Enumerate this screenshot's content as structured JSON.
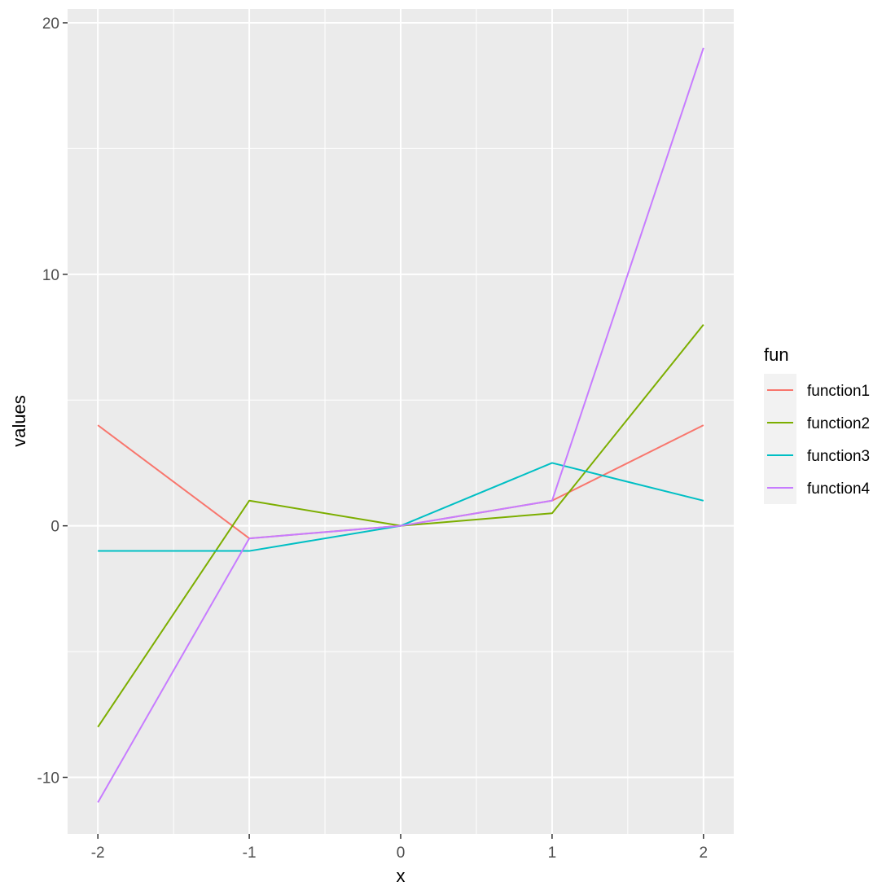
{
  "chart_data": {
    "type": "line",
    "xlabel": "x",
    "ylabel": "values",
    "xlim": [
      -2.2,
      2.2
    ],
    "ylim": [
      -12.25,
      20.55
    ],
    "x_ticks": [
      -2,
      -1,
      0,
      1,
      2
    ],
    "x_minor_ticks": [
      -1.5,
      -0.5,
      0.5,
      1.5
    ],
    "y_ticks": [
      -10,
      0,
      10,
      20
    ],
    "y_minor_ticks": [
      -5,
      5,
      15
    ],
    "x_tick_labels": [
      "-2",
      "-1",
      "0",
      "1",
      "2"
    ],
    "y_tick_labels": [
      "-10",
      "0",
      "10",
      "20"
    ],
    "grid": true,
    "legend": {
      "title": "fun",
      "position": "right"
    },
    "x": [
      -2,
      -1,
      0,
      1,
      2
    ],
    "series": [
      {
        "name": "function1",
        "color": "#F8766D",
        "values": [
          4,
          -0.5,
          0,
          1,
          4
        ]
      },
      {
        "name": "function2",
        "color": "#7CAE00",
        "values": [
          -8,
          1,
          0,
          0.5,
          8
        ]
      },
      {
        "name": "function3",
        "color": "#00BFC4",
        "values": [
          -1,
          -1,
          0,
          2.5,
          1
        ]
      },
      {
        "name": "function4",
        "color": "#C77CFF",
        "values": [
          -11,
          -0.5,
          0,
          1,
          19
        ]
      }
    ]
  }
}
